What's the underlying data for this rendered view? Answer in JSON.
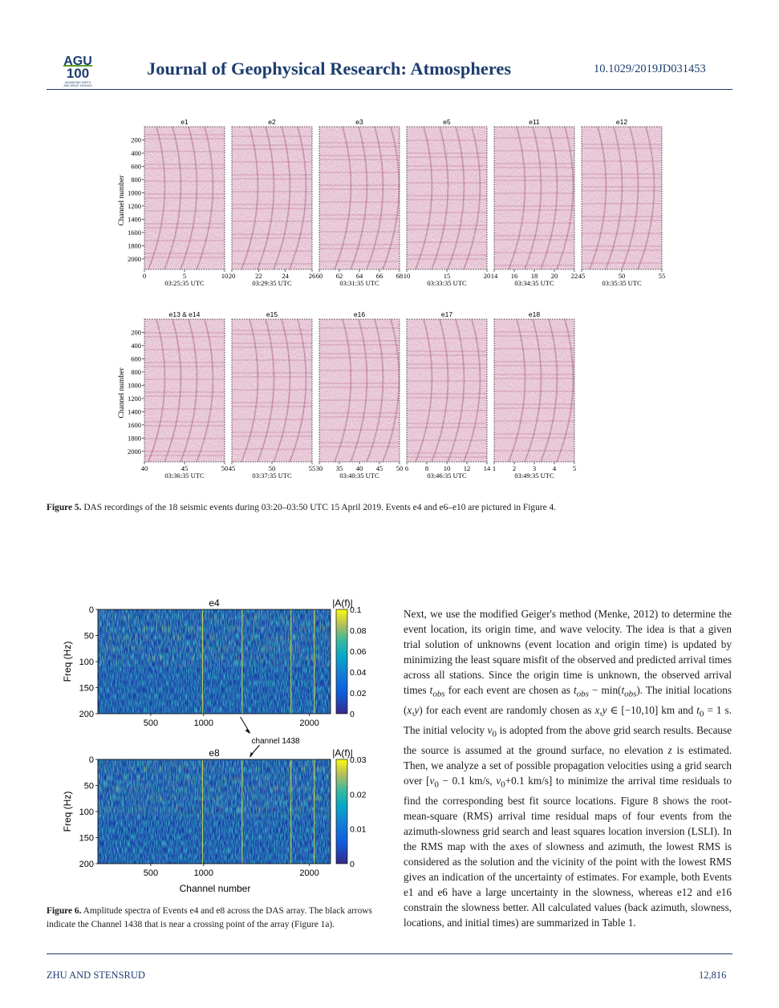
{
  "header": {
    "logo_text": "AGU 100",
    "logo_tagline": "ADVANCING EARTH AND SPACE SCIENCE",
    "journal": "Journal of Geophysical Research: Atmospheres",
    "doi": "10.1029/2019JD031453"
  },
  "figure5": {
    "ylabel": "Channel number",
    "yticks": [
      "200",
      "400",
      "600",
      "800",
      "1000",
      "1200",
      "1400",
      "1600",
      "1800",
      "2000"
    ],
    "row1": [
      {
        "title": "e1",
        "xticks": [
          "0",
          "5",
          "10"
        ],
        "time": "03:25:35 UTC"
      },
      {
        "title": "e2",
        "xticks": [
          "20",
          "22",
          "24",
          "26"
        ],
        "time": "03:29:35 UTC"
      },
      {
        "title": "e3",
        "xticks": [
          "60",
          "62",
          "64",
          "66",
          "68"
        ],
        "time": "03:31:35 UTC"
      },
      {
        "title": "e5",
        "xticks": [
          "10",
          "15",
          "20"
        ],
        "time": "03:33:35 UTC"
      },
      {
        "title": "e11",
        "xticks": [
          "14",
          "16",
          "18",
          "20",
          "22"
        ],
        "time": "03:34:35 UTC"
      },
      {
        "title": "e12",
        "xticks": [
          "45",
          "50",
          "55"
        ],
        "time": "03:35:35 UTC"
      }
    ],
    "row2": [
      {
        "title": "e13 & e14",
        "xticks": [
          "40",
          "45",
          "50"
        ],
        "time": "03:36:35 UTC"
      },
      {
        "title": "e15",
        "xticks": [
          "45",
          "50",
          "55"
        ],
        "time": "03:37:35 UTC"
      },
      {
        "title": "e16",
        "xticks": [
          "30",
          "35",
          "40",
          "45",
          "50"
        ],
        "time": "03:40:35 UTC"
      },
      {
        "title": "e17",
        "xticks": [
          "6",
          "8",
          "10",
          "12",
          "14"
        ],
        "time": "03:46:35 UTC"
      },
      {
        "title": "e18",
        "xticks": [
          "1",
          "2",
          "3",
          "4",
          "5"
        ],
        "time": "03:49:35 UTC"
      }
    ],
    "caption_label": "Figure 5.",
    "caption_text": "DAS recordings of the 18 seismic events during 03:20–03:50 UTC 15 April 2019. Events e4 and e6–e10 are pictured in Figure 4."
  },
  "figure6": {
    "panels": [
      {
        "title": "e4",
        "cbar_label": "|A(f)|",
        "cbar_ticks": [
          "0.1",
          "0.08",
          "0.06",
          "0.04",
          "0.02",
          "0"
        ],
        "ylabel": "Freq (Hz)",
        "yticks": [
          "0",
          "50",
          "100",
          "150",
          "200"
        ],
        "xticks": [
          "500",
          "1000",
          "2000"
        ]
      },
      {
        "title": "e8",
        "cbar_label": "|A(f)|",
        "cbar_ticks": [
          "0.03",
          "0.02",
          "0.01",
          "0"
        ],
        "ylabel": "Freq (Hz)",
        "yticks": [
          "0",
          "50",
          "100",
          "150",
          "200"
        ],
        "xticks": [
          "500",
          "1000",
          "2000"
        ]
      }
    ],
    "arrow_label": "channel 1438",
    "xlabel": "Channel number",
    "caption_label": "Figure 6.",
    "caption_text": "Amplitude spectra of Events e4 and e8 across the DAS array. The black arrows indicate the Channel 1438 that is near a crossing point of the array (Figure 1a)."
  },
  "body_text": {
    "p1_a": "Next, we use the modified Geiger's method (Menke, 2012) to determine the event location, its origin time, and wave velocity. The idea is that a given trial solution of unknowns (event location and origin time) is updated by minimizing the least square misfit of the observed and predicted arrival times across all stations. Since the origin time is unknown, the observed arrival times ",
    "t_obs": "t",
    "obs_sub": "obs",
    "p1_b": " for each event are chosen as ",
    "p1_c": " − min(",
    "p1_d": "). The initial locations (",
    "xy": "x,y",
    "p1_e": ") for each event are randomly chosen as ",
    "p1_f": " ∈ [−10,10] km and ",
    "t0": "t",
    "zero_sub": "0",
    "p1_g": " = 1 s. The initial velocity ",
    "v0": "v",
    "p1_h": " is adopted from the above grid search results. Because the source is assumed at the ground surface, no elevation ",
    "z": "z",
    "p1_i": " is estimated. Then, we analyze a set of possible propagation velocities using a grid search over [",
    "p1_j": " − 0.1 km/s, ",
    "p1_k": "+0.1 km/s] to minimize the arrival time residuals to find the corresponding best fit source locations. Figure 8 shows the root-mean-square (RMS) arrival time residual maps of four events from the azimuth-slowness grid search and least squares location inversion (LSLI). In the RMS map with the axes of slowness and azimuth, the lowest RMS is considered as the solution and the vicinity of the point with the lowest RMS gives an indication of the uncertainty of estimates. For example, both Events e1 and e6 have a large uncertainty in the slowness, whereas e12 and e16 constrain the slowness better. All calculated values (back azimuth, slowness, locations, and initial times) are summarized in Table 1."
  },
  "footer": {
    "authors": "ZHU AND STENSRUD",
    "page": "12,816"
  },
  "colors": {
    "journal_blue": "#1d3d6e",
    "logo_green": "#5aa02c"
  }
}
